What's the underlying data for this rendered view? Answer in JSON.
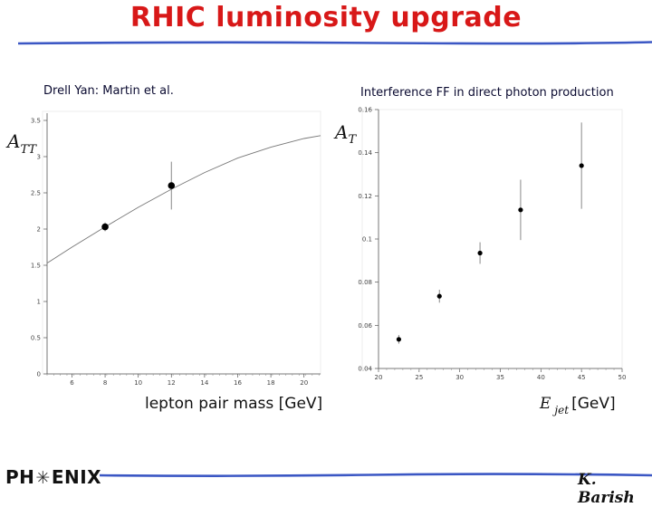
{
  "slide": {
    "title": "RHIC luminosity upgrade",
    "logo": {
      "left": "PH",
      "icon": "star-burst-icon",
      "right": "ENIX"
    },
    "author": "K. Barish"
  },
  "chart_data": [
    {
      "type": "line",
      "title": "Drell Yan: Martin et al.",
      "ylabel": "A_TT",
      "xlabel": "lepton pair mass [GeV]",
      "xlim": [
        4.5,
        21.0
      ],
      "ylim": [
        0,
        3.6
      ],
      "xticks": [
        6,
        8,
        10,
        12,
        14,
        16,
        18,
        20
      ],
      "yticks": [
        0,
        0.5,
        1,
        1.5,
        2,
        2.5,
        3,
        3.5
      ],
      "curve": {
        "x": [
          4.5,
          6,
          8,
          10,
          12,
          14,
          16,
          18,
          20,
          21
        ],
        "y": [
          1.53,
          1.75,
          2.03,
          2.3,
          2.55,
          2.78,
          2.98,
          3.13,
          3.25,
          3.29
        ]
      },
      "points": [
        {
          "x": 8,
          "y": 2.03,
          "err": 0.06
        },
        {
          "x": 12,
          "y": 2.6,
          "err": 0.33
        }
      ]
    },
    {
      "type": "scatter",
      "title": "Interference FF in direct photon production",
      "ylabel": "A_T",
      "xlabel": "E_jet [GeV]",
      "xlim": [
        20,
        50
      ],
      "ylim": [
        0.04,
        0.16
      ],
      "xticks": [
        20,
        25,
        30,
        35,
        40,
        45,
        50
      ],
      "yticks": [
        0.04,
        0.06,
        0.08,
        0.1,
        0.12,
        0.14,
        0.16
      ],
      "yticklabels": [
        "0.04",
        "0.06",
        "0.08",
        "0.1",
        "0.12",
        "0.14",
        "0.16"
      ],
      "points": [
        {
          "x": 22.5,
          "y": 0.0535,
          "err": 0.002
        },
        {
          "x": 27.5,
          "y": 0.0735,
          "err": 0.003
        },
        {
          "x": 32.5,
          "y": 0.0935,
          "err": 0.005
        },
        {
          "x": 37.5,
          "y": 0.1135,
          "err": 0.014
        },
        {
          "x": 45,
          "y": 0.134,
          "err": 0.02
        }
      ]
    }
  ]
}
